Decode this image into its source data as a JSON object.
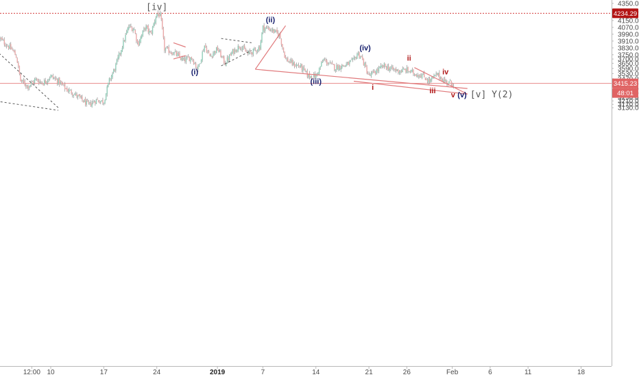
{
  "chart_data": {
    "type": "candlestick",
    "y_axis_position": "right",
    "ylim": [
      3100,
      4370
    ],
    "y_ticks": [
      3130,
      3170,
      3210,
      3250,
      3300,
      3350,
      3410,
      3470,
      3530,
      3590,
      3650,
      3700,
      3750,
      3830,
      3910,
      3990,
      4070,
      4150,
      4250,
      4350
    ],
    "x_ticks": [
      {
        "label": "12:00",
        "t": -2.5
      },
      {
        "label": "10",
        "t": 0
      },
      {
        "label": "17",
        "t": 7
      },
      {
        "label": "24",
        "t": 14
      },
      {
        "label": "2019",
        "t": 22,
        "bold": true
      },
      {
        "label": "7",
        "t": 28
      },
      {
        "label": "14",
        "t": 35
      },
      {
        "label": "21",
        "t": 42
      },
      {
        "label": "26",
        "t": 47
      },
      {
        "label": "Feb",
        "t": 53
      },
      {
        "label": "6",
        "t": 58
      },
      {
        "label": "11",
        "t": 63
      },
      {
        "label": "18",
        "t": 70
      }
    ],
    "price_trend": [
      [
        -7,
        3960
      ],
      [
        -6,
        3880
      ],
      [
        -5,
        3800
      ],
      [
        -4.5,
        3720
      ],
      [
        -4,
        3450
      ],
      [
        -3,
        3380
      ],
      [
        -2,
        3460
      ],
      [
        -1,
        3420
      ],
      [
        0,
        3500
      ],
      [
        1,
        3440
      ],
      [
        2,
        3350
      ],
      [
        3,
        3300
      ],
      [
        4,
        3230
      ],
      [
        5,
        3160
      ],
      [
        6,
        3220
      ],
      [
        7,
        3200
      ],
      [
        7.7,
        3440
      ],
      [
        8.5,
        3600
      ],
      [
        9.5,
        3870
      ],
      [
        10.3,
        4080
      ],
      [
        11,
        4050
      ],
      [
        11.5,
        3870
      ],
      [
        12.5,
        4080
      ],
      [
        13.2,
        3990
      ],
      [
        14,
        4234
      ],
      [
        14.5,
        4200
      ],
      [
        15,
        3820
      ],
      [
        16.5,
        3760
      ],
      [
        17.5,
        3680
      ],
      [
        18.6,
        3720
      ],
      [
        19.4,
        3580
      ],
      [
        20.3,
        3860
      ],
      [
        21,
        3730
      ],
      [
        22,
        3820
      ],
      [
        23,
        3650
      ],
      [
        24,
        3780
      ],
      [
        25,
        3860
      ],
      [
        26,
        3760
      ],
      [
        27,
        3800
      ],
      [
        27.6,
        3840
      ],
      [
        28,
        4070
      ],
      [
        29,
        4050
      ],
      [
        30.2,
        3980
      ],
      [
        31,
        3700
      ],
      [
        32,
        3640
      ],
      [
        33,
        3610
      ],
      [
        34,
        3500
      ],
      [
        35,
        3500
      ],
      [
        36,
        3690
      ],
      [
        37.5,
        3600
      ],
      [
        39,
        3630
      ],
      [
        40,
        3680
      ],
      [
        40.5,
        3770
      ],
      [
        41,
        3720
      ],
      [
        42,
        3500
      ],
      [
        43,
        3560
      ],
      [
        44,
        3620
      ],
      [
        45,
        3580
      ],
      [
        46,
        3560
      ],
      [
        47,
        3570
      ],
      [
        48,
        3530
      ],
      [
        49,
        3510
      ],
      [
        50,
        3440
      ],
      [
        51,
        3520
      ],
      [
        52,
        3440
      ],
      [
        53,
        3415
      ]
    ],
    "last_price": "3415.23",
    "countdown": "48:01",
    "level_price": "4234.29",
    "level_value": 4234.29,
    "trendlines": [
      {
        "from": [
          27,
          3580
        ],
        "to": [
          31,
          4090
        ],
        "style": "solid",
        "color": "#e0787a"
      },
      {
        "from": [
          27,
          3580
        ],
        "to": [
          55,
          3355
        ],
        "style": "solid",
        "color": "#e0787a"
      },
      {
        "from": [
          40,
          3440
        ],
        "to": [
          55,
          3290
        ],
        "style": "solid",
        "color": "#e0787a"
      },
      {
        "from": [
          48,
          3600
        ],
        "to": [
          55,
          3290
        ],
        "style": "solid",
        "color": "#e0787a"
      },
      {
        "from": [
          -12,
          4190
        ],
        "to": [
          1,
          3130
        ],
        "style": "dashed",
        "color": "#555"
      },
      {
        "from": [
          -12,
          3270
        ],
        "to": [
          1,
          3100
        ],
        "style": "dashed",
        "color": "#555"
      },
      {
        "from": [
          16.2,
          3890
        ],
        "to": [
          17.8,
          3840
        ],
        "style": "solid",
        "color": "#e0787a"
      },
      {
        "from": [
          16.2,
          3700
        ],
        "to": [
          17.8,
          3740
        ],
        "style": "solid",
        "color": "#e0787a"
      },
      {
        "from": [
          22.5,
          3940
        ],
        "to": [
          26.5,
          3890
        ],
        "style": "dashed",
        "color": "#555"
      },
      {
        "from": [
          22.5,
          3620
        ],
        "to": [
          26.5,
          3800
        ],
        "style": "dashed",
        "color": "#555"
      }
    ],
    "labels": [
      {
        "text": "[iv]",
        "t": 14,
        "v": 4275,
        "style": "mono"
      },
      {
        "text": "(ii)",
        "t": 29,
        "v": 4130,
        "style": "navy"
      },
      {
        "text": "(i)",
        "t": 19,
        "v": 3520,
        "style": "navy"
      },
      {
        "text": "(iii)",
        "t": 35,
        "v": 3410,
        "style": "navy"
      },
      {
        "text": "(iv)",
        "t": 41.5,
        "v": 3800,
        "style": "navy"
      },
      {
        "text": "ii",
        "t": 47.3,
        "v": 3680,
        "style": "red"
      },
      {
        "text": "i",
        "t": 42.5,
        "v": 3340,
        "style": "red"
      },
      {
        "text": "iii",
        "t": 50.4,
        "v": 3300,
        "style": "red"
      },
      {
        "text": "iv",
        "t": 52.1,
        "v": 3520,
        "style": "red"
      },
      {
        "text": "v",
        "t": 53.1,
        "v": 3250,
        "style": "red"
      },
      {
        "text": "(v)",
        "t": 54.3,
        "v": 3250,
        "style": "navy"
      },
      {
        "text": "[v] Y(2)",
        "t": 58.2,
        "v": 3250,
        "style": "mono"
      }
    ]
  }
}
